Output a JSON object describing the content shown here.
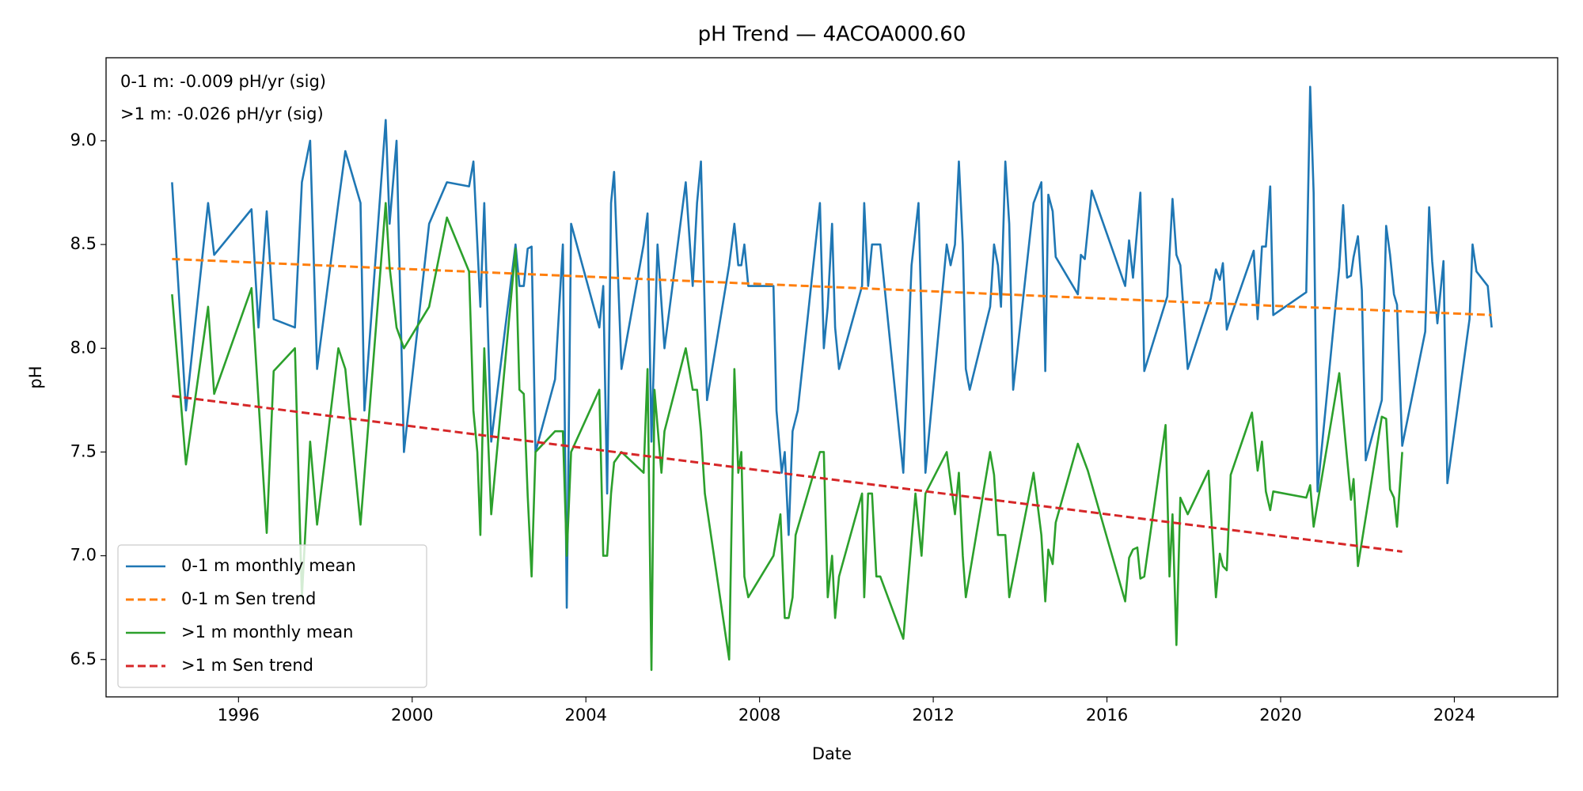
{
  "chart_data": {
    "type": "line",
    "title": "pH Trend — 4ACOA000.60",
    "x_label": "Date",
    "y_label": "pH",
    "annotations": [
      "0-1 m: -0.009 pH/yr (sig)",
      ">1 m: -0.026 pH/yr (sig)"
    ],
    "xlim": [
      1992.95,
      2026.38
    ],
    "xticks": [
      1996,
      2000,
      2004,
      2008,
      2012,
      2016,
      2020,
      2024
    ],
    "ylim": [
      6.32,
      9.4
    ],
    "yticks": [
      {
        "value": 6.5,
        "label": "6.5"
      },
      {
        "value": 7,
        "label": "7.0"
      },
      {
        "value": 7.5,
        "label": "7.5"
      },
      {
        "value": 8,
        "label": "8.0"
      },
      {
        "value": 8.5,
        "label": "8.5"
      },
      {
        "value": 9,
        "label": "9.0"
      }
    ],
    "legend": "lower left",
    "grid": false,
    "series": [
      {
        "name": "0-1 m monthly mean",
        "color": "#1f77b4",
        "dash": false,
        "x": [
          1994.47,
          1994.79,
          1995.3,
          1995.44,
          1996.3,
          1996.46,
          1996.65,
          1996.81,
          1997.3,
          1997.46,
          1997.65,
          1997.81,
          1998.3,
          1998.46,
          1998.81,
          1998.9,
          1999.39,
          1999.48,
          1999.64,
          1999.81,
          2000.39,
          2000.8,
          2001.31,
          2001.41,
          2001.57,
          2001.66,
          2001.82,
          2002.38,
          2002.47,
          2002.57,
          2002.66,
          2002.75,
          2002.84,
          2003.29,
          2003.47,
          2003.56,
          2003.66,
          2004.31,
          2004.4,
          2004.49,
          2004.58,
          2004.65,
          2004.82,
          2005.33,
          2005.42,
          2005.51,
          2005.65,
          2005.81,
          2006.3,
          2006.46,
          2006.56,
          2006.65,
          2006.79,
          2007.3,
          2007.42,
          2007.51,
          2007.58,
          2007.65,
          2007.74,
          2008.32,
          2008.39,
          2008.51,
          2008.58,
          2008.67,
          2008.76,
          2008.88,
          2009.39,
          2009.48,
          2009.57,
          2009.67,
          2009.74,
          2009.83,
          2010.36,
          2010.41,
          2010.5,
          2010.59,
          2010.78,
          2011.31,
          2011.5,
          2011.66,
          2011.82,
          2012.31,
          2012.4,
          2012.5,
          2012.59,
          2012.68,
          2012.75,
          2012.84,
          2013.31,
          2013.4,
          2013.49,
          2013.56,
          2013.66,
          2013.75,
          2013.84,
          2014.31,
          2014.49,
          2014.58,
          2014.65,
          2014.75,
          2014.82,
          2015.33,
          2015.4,
          2015.49,
          2015.65,
          2016.42,
          2016.51,
          2016.6,
          2016.77,
          2016.86,
          2017.39,
          2017.51,
          2017.6,
          2017.69,
          2017.86,
          2018.39,
          2018.51,
          2018.6,
          2018.67,
          2018.76,
          2018.85,
          2019.38,
          2019.47,
          2019.57,
          2019.66,
          2019.76,
          2019.83,
          2020.59,
          2020.68,
          2020.76,
          2020.85,
          2021.35,
          2021.44,
          2021.53,
          2021.62,
          2021.68,
          2021.78,
          2021.87,
          2021.96,
          2022.33,
          2022.43,
          2022.52,
          2022.61,
          2022.68,
          2022.8,
          2023.33,
          2023.42,
          2023.49,
          2023.61,
          2023.75,
          2023.84,
          2024.35,
          2024.42,
          2024.51,
          2024.77,
          2024.86
        ],
        "values": [
          8.8,
          7.7,
          8.7,
          8.45,
          8.67,
          8.1,
          8.66,
          8.14,
          8.1,
          8.8,
          9.0,
          7.9,
          8.7,
          8.95,
          8.7,
          7.7,
          9.1,
          8.6,
          9.0,
          7.5,
          8.6,
          8.8,
          8.78,
          8.9,
          8.2,
          8.7,
          7.55,
          8.5,
          8.3,
          8.3,
          8.48,
          8.49,
          7.5,
          7.85,
          8.5,
          6.75,
          8.6,
          8.1,
          8.3,
          7.3,
          8.7,
          8.85,
          7.9,
          8.5,
          8.65,
          7.55,
          8.5,
          8.0,
          8.8,
          8.3,
          8.7,
          8.9,
          7.75,
          8.4,
          8.6,
          8.4,
          8.4,
          8.5,
          8.3,
          8.3,
          7.7,
          7.4,
          7.5,
          7.1,
          7.6,
          7.7,
          8.7,
          8.0,
          8.2,
          8.6,
          8.1,
          7.9,
          8.3,
          8.7,
          8.3,
          8.5,
          8.5,
          7.4,
          8.4,
          8.7,
          7.4,
          8.5,
          8.4,
          8.5,
          8.9,
          8.5,
          7.9,
          7.8,
          8.2,
          8.5,
          8.4,
          8.2,
          8.9,
          8.6,
          7.8,
          8.7,
          8.8,
          7.89,
          8.74,
          8.66,
          8.44,
          8.26,
          8.45,
          8.43,
          8.76,
          8.3,
          8.52,
          8.34,
          8.75,
          7.89,
          8.25,
          8.72,
          8.45,
          8.4,
          7.9,
          8.24,
          8.38,
          8.33,
          8.41,
          8.09,
          8.15,
          8.47,
          8.14,
          8.49,
          8.49,
          8.78,
          8.16,
          8.27,
          9.26,
          8.75,
          7.31,
          8.39,
          8.69,
          8.34,
          8.35,
          8.44,
          8.54,
          8.28,
          7.46,
          7.75,
          8.59,
          8.45,
          8.26,
          8.21,
          7.53,
          8.08,
          8.68,
          8.42,
          8.12,
          8.42,
          7.35,
          8.14,
          8.5,
          8.37,
          8.3,
          8.1
        ]
      },
      {
        "name": "0-1 m Sen trend",
        "color": "#ff7f0e",
        "dash": true,
        "x": [
          1994.47,
          2024.86
        ],
        "values": [
          8.43,
          8.16
        ]
      },
      {
        "name": ">1 m monthly mean",
        "color": "#2ca02c",
        "dash": false,
        "x": [
          1994.47,
          1994.79,
          1995.3,
          1995.44,
          1996.3,
          1996.65,
          1996.81,
          1997.3,
          1997.46,
          1997.65,
          1997.81,
          1998.3,
          1998.46,
          1998.81,
          1999.39,
          1999.48,
          1999.64,
          1999.81,
          2000.39,
          2000.8,
          2001.31,
          2001.41,
          2001.5,
          2001.57,
          2001.66,
          2001.82,
          2002.38,
          2002.47,
          2002.57,
          2002.66,
          2002.75,
          2002.84,
          2003.29,
          2003.47,
          2003.56,
          2003.66,
          2004.31,
          2004.4,
          2004.49,
          2004.58,
          2004.65,
          2004.82,
          2005.33,
          2005.42,
          2005.51,
          2005.58,
          2005.74,
          2005.81,
          2006.3,
          2006.46,
          2006.56,
          2006.65,
          2006.74,
          2007.3,
          2007.42,
          2007.51,
          2007.58,
          2007.65,
          2007.74,
          2008.32,
          2008.48,
          2008.58,
          2008.67,
          2008.76,
          2008.83,
          2009.39,
          2009.48,
          2009.57,
          2009.67,
          2009.74,
          2009.83,
          2010.36,
          2010.41,
          2010.5,
          2010.59,
          2010.69,
          2010.78,
          2011.31,
          2011.59,
          2011.73,
          2011.82,
          2012.31,
          2012.5,
          2012.59,
          2012.68,
          2012.75,
          2013.31,
          2013.4,
          2013.49,
          2013.66,
          2013.75,
          2014.31,
          2014.49,
          2014.58,
          2014.65,
          2014.75,
          2014.82,
          2015.33,
          2015.56,
          2016.42,
          2016.51,
          2016.6,
          2016.7,
          2016.77,
          2016.86,
          2017.35,
          2017.44,
          2017.51,
          2017.6,
          2017.69,
          2017.86,
          2018.34,
          2018.51,
          2018.6,
          2018.67,
          2018.76,
          2018.85,
          2019.34,
          2019.47,
          2019.57,
          2019.66,
          2019.76,
          2019.83,
          2020.59,
          2020.68,
          2020.76,
          2021.35,
          2021.53,
          2021.62,
          2021.68,
          2021.78,
          2022.33,
          2022.43,
          2022.52,
          2022.61,
          2022.68,
          2022.8
        ],
        "values": [
          8.26,
          7.44,
          8.2,
          7.78,
          8.29,
          7.11,
          7.89,
          8.0,
          6.8,
          7.55,
          7.15,
          8.0,
          7.9,
          7.15,
          8.7,
          8.39,
          8.1,
          8.0,
          8.2,
          8.63,
          8.37,
          7.7,
          7.5,
          7.1,
          8.0,
          7.2,
          8.48,
          7.8,
          7.78,
          7.29,
          6.9,
          7.5,
          7.6,
          7.6,
          7.0,
          7.5,
          7.8,
          7.0,
          7.0,
          7.3,
          7.45,
          7.5,
          7.4,
          7.9,
          6.45,
          7.8,
          7.4,
          7.6,
          8.0,
          7.8,
          7.8,
          7.6,
          7.3,
          6.5,
          7.9,
          7.4,
          7.5,
          6.9,
          6.8,
          7.0,
          7.2,
          6.7,
          6.7,
          6.8,
          7.1,
          7.5,
          7.5,
          6.8,
          7.0,
          6.7,
          6.9,
          7.3,
          6.8,
          7.3,
          7.3,
          6.9,
          6.9,
          6.6,
          7.3,
          7.0,
          7.3,
          7.5,
          7.2,
          7.4,
          7.0,
          6.8,
          7.5,
          7.39,
          7.1,
          7.1,
          6.8,
          7.4,
          7.1,
          6.78,
          7.03,
          6.96,
          7.16,
          7.54,
          7.41,
          6.78,
          6.99,
          7.03,
          7.04,
          6.89,
          6.9,
          7.63,
          6.9,
          7.2,
          6.57,
          7.28,
          7.2,
          7.41,
          6.8,
          7.01,
          6.95,
          6.93,
          7.39,
          7.69,
          7.41,
          7.55,
          7.31,
          7.22,
          7.31,
          7.28,
          7.34,
          7.14,
          7.88,
          7.47,
          7.27,
          7.37,
          6.95,
          7.67,
          7.66,
          7.32,
          7.28,
          7.14,
          7.5
        ]
      },
      {
        "name": ">1 m Sen trend",
        "color": "#d62728",
        "dash": true,
        "x": [
          1994.47,
          2022.8
        ],
        "values": [
          7.77,
          7.02
        ]
      }
    ]
  }
}
